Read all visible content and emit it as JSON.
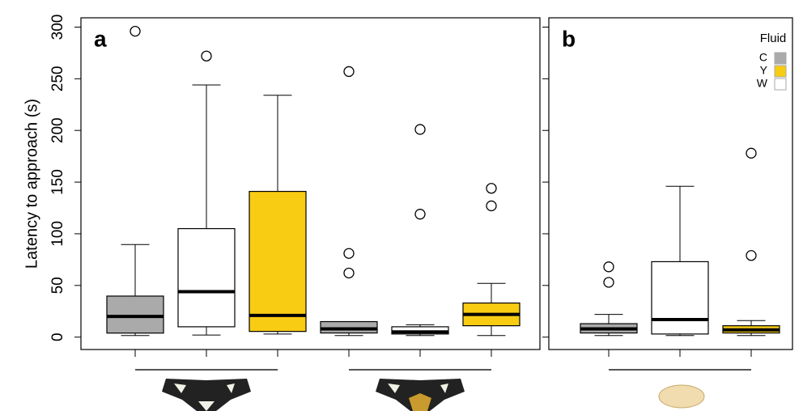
{
  "chart_data": [
    {
      "type": "box",
      "panel_label": "a",
      "ylabel": "Latency to approach (s)",
      "ylim": [
        -12,
        309
      ],
      "yticks": [
        0,
        50,
        100,
        150,
        200,
        250,
        300
      ],
      "show_ytick_labels": true,
      "categories": [
        null,
        null
      ],
      "series": [
        {
          "name": "C",
          "color": "#aaaaaa",
          "values": [
            {
              "whislo": 1.5,
              "q1": 3.9,
              "med": 20,
              "q3": 39.7,
              "whishi": 89.6,
              "fliers": [
                296
              ]
            },
            {
              "whislo": 1.5,
              "q1": 4,
              "med": 8,
              "q3": 15,
              "whishi": 15,
              "fliers": [
                257,
                81,
                62
              ]
            }
          ]
        },
        {
          "name": "W",
          "color": "#ffffff",
          "values": [
            {
              "whislo": 2,
              "q1": 10,
              "med": 44,
              "q3": 105,
              "whishi": 244,
              "fliers": [
                272
              ]
            },
            {
              "whislo": 1.5,
              "q1": 3,
              "med": 5,
              "q3": 10,
              "whishi": 12,
              "fliers": [
                201,
                119
              ]
            }
          ]
        },
        {
          "name": "Y",
          "color": "#f9cc14",
          "values": [
            {
              "whislo": 3,
              "q1": 5.5,
              "med": 21,
              "q3": 141,
              "whishi": 234,
              "fliers": []
            },
            {
              "whislo": 1.5,
              "q1": 11,
              "med": 22,
              "q3": 33,
              "whishi": 52,
              "fliers": [
                144,
                127
              ]
            }
          ]
        }
      ]
    },
    {
      "type": "box",
      "panel_label": "b",
      "ylim": [
        -12,
        309
      ],
      "yticks": [
        0,
        50,
        100,
        150,
        200,
        250,
        300
      ],
      "show_ytick_labels": false,
      "categories": [
        null
      ],
      "legend_title": "Fluid",
      "legend_order": [
        0,
        2,
        1
      ],
      "legend": "top-right",
      "series": [
        {
          "name": "C",
          "color": "#aaaaaa",
          "values": [
            {
              "whislo": 1.5,
              "q1": 4,
              "med": 8,
              "q3": 13,
              "whishi": 22,
              "fliers": [
                68,
                53
              ]
            }
          ]
        },
        {
          "name": "W",
          "color": "#ffffff",
          "values": [
            {
              "whislo": 1.5,
              "q1": 3,
              "med": 17,
              "q3": 73,
              "whishi": 146,
              "fliers": []
            }
          ]
        },
        {
          "name": "Y",
          "color": "#f9cc14",
          "values": [
            {
              "whislo": 1.5,
              "q1": 4,
              "med": 7,
              "q3": 11,
              "whishi": 16,
              "fliers": [
                178,
                79
              ]
            }
          ]
        }
      ]
    }
  ]
}
